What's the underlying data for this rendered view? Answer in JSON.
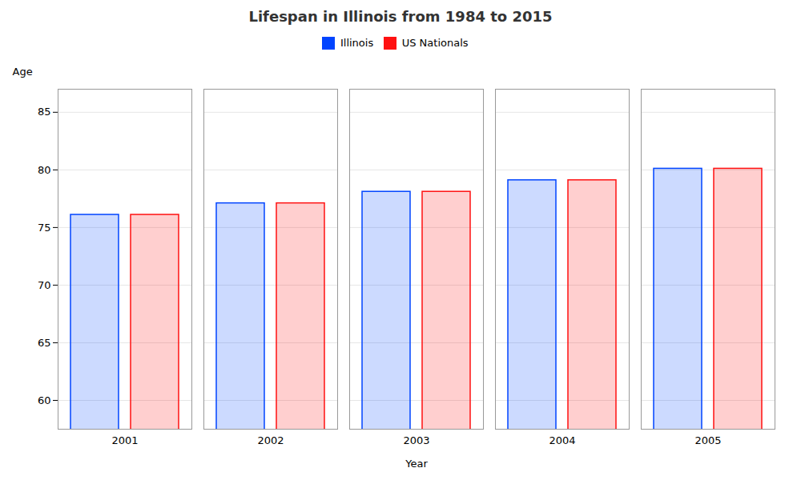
{
  "chart_data": {
    "type": "bar",
    "title": "Lifespan in Illinois from 1984 to 2015",
    "xlabel": "Year",
    "ylabel": "Age",
    "categories": [
      "2001",
      "2002",
      "2003",
      "2004",
      "2005"
    ],
    "series": [
      {
        "name": "Illinois",
        "color": "#0044ff",
        "values": [
          76.1,
          77.1,
          78.1,
          79.1,
          80.1
        ]
      },
      {
        "name": "US Nationals",
        "color": "#ff1111",
        "values": [
          76.1,
          77.1,
          78.1,
          79.1,
          80.1
        ]
      }
    ],
    "ylim": [
      57.5,
      87
    ],
    "yticks": [
      60,
      65,
      70,
      75,
      80,
      85
    ],
    "grid": true,
    "legend": "top"
  }
}
